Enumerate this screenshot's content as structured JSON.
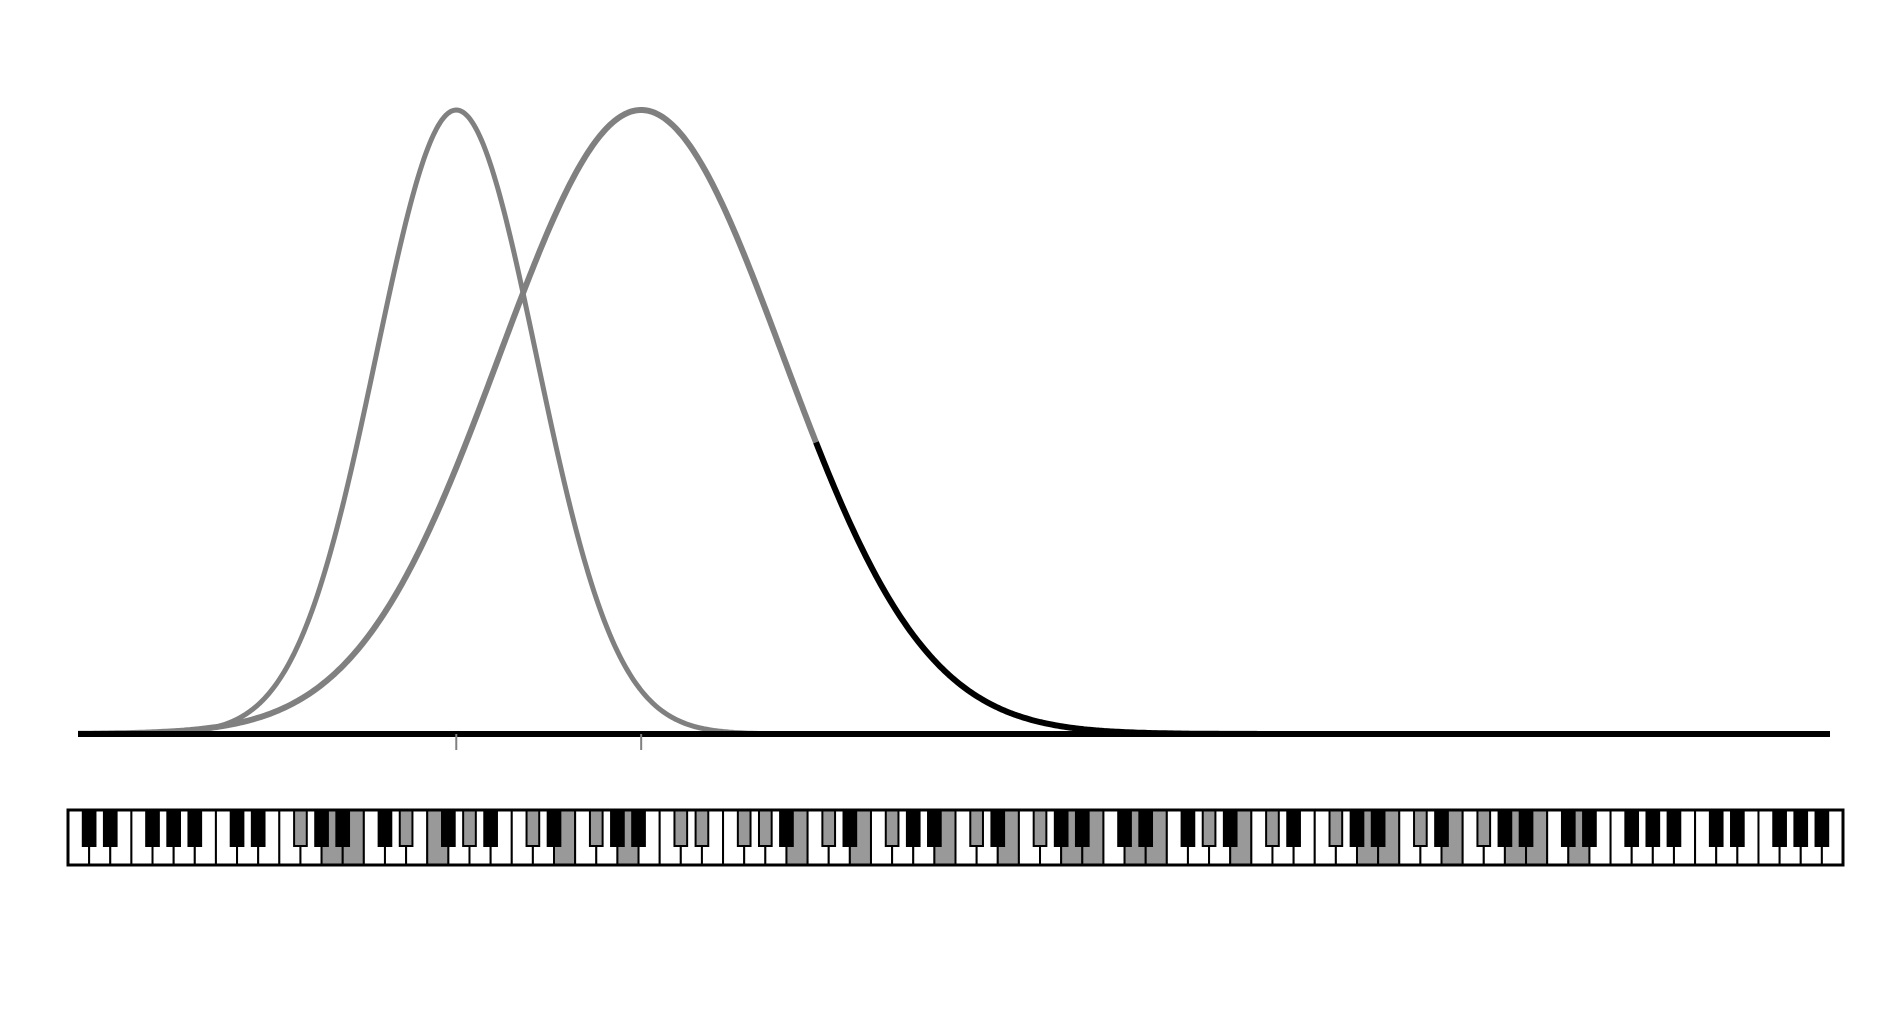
{
  "diagram": {
    "type": "overlapping-normal-distributions-over-piano-keyboard",
    "colors": {
      "background": "#ffffff",
      "curve_gray": "#808080",
      "curve_black": "#000000",
      "axis": "#000000",
      "key_white": "#ffffff",
      "key_black": "#000000",
      "key_highlight": "#999999",
      "key_outline": "#000000"
    },
    "curves": [
      {
        "name": "narrow-curve",
        "peak_note": 31,
        "sigma_notes": 6.5,
        "stroke": "gray"
      },
      {
        "name": "wide-curve",
        "peak_note": 46,
        "sigma_notes": 11.5,
        "stroke": "gray",
        "upper_tail_stroke": "black"
      }
    ],
    "axis": {
      "tick_notes": [
        31,
        46
      ]
    },
    "keyboard": {
      "octaves": 12,
      "notes_per_octave": 12,
      "black_key_pitch_classes": [
        1,
        3,
        6,
        8,
        10
      ],
      "highlighted_notes": [
        18,
        21,
        23,
        27,
        29,
        32,
        37,
        40,
        42,
        45,
        49,
        51,
        54,
        56,
        59,
        61,
        64,
        66,
        71,
        73,
        76,
        78,
        81,
        83,
        86,
        88,
        92,
        95,
        97,
        102,
        105,
        107,
        109,
        112,
        114,
        117,
        119,
        122
      ]
    }
  }
}
